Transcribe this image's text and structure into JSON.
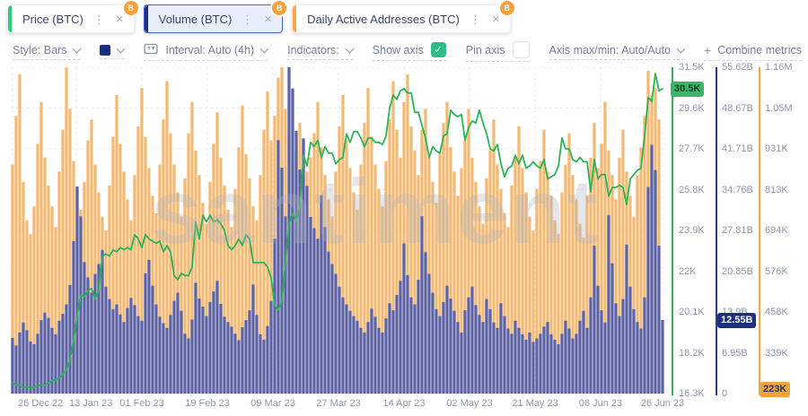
{
  "tabs": [
    {
      "label": "Price (BTC)",
      "accent": "#2ecc71",
      "selected": false
    },
    {
      "label": "Volume (BTC)",
      "accent": "#1d2d7e",
      "selected": true
    },
    {
      "label": "Daily Active Addresses (BTC)",
      "accent": "#ffa44d",
      "selected": false
    }
  ],
  "coin_badge": "B",
  "toolbar": {
    "style_label": "Style: Bars",
    "interval_label": "Interval: Auto (4h)",
    "indicators_label": "Indicators:",
    "show_axis_label": "Show axis",
    "show_axis_checked": "✓",
    "pin_axis_label": "Pin axis",
    "axis_maxmin_label": "Axis max/min: Auto/Auto",
    "combine_plus": "+",
    "combine_label": "Combine metrics"
  },
  "watermark": "santiment",
  "axes": {
    "price": {
      "color": "#2bb457",
      "badge": "30.5K",
      "badge_value": 30.5,
      "labels": [
        "31.5K",
        "29.6K",
        "27.7K",
        "25.8K",
        "23.9K",
        "22K",
        "20.1K",
        "18.2K",
        "16.3K"
      ]
    },
    "volume": {
      "color": "#2b3a8f",
      "badge": "12.55B",
      "badge_value": 12.55,
      "labels": [
        "55.62B",
        "48.67B",
        "41.71B",
        "34.76B",
        "27.81B",
        "20.85B",
        "13.9B",
        "6.95B",
        "0"
      ]
    },
    "daa": {
      "color": "#f7a93e",
      "badge": "223K",
      "badge_value": 223,
      "labels": [
        "1.16M",
        "1.05M",
        "931K",
        "813K",
        "694K",
        "576K",
        "458K",
        "339K",
        ""
      ]
    }
  },
  "x_labels": [
    "26 Dec 22",
    "13 Jan 23",
    "01 Feb 23",
    "19 Feb 23",
    "09 Mar 23",
    "27 Mar 23",
    "14 Apr 23",
    "02 May 23",
    "21 May 23",
    "08 Jun 23",
    "26 Jun 23"
  ],
  "chart_data": {
    "type": "mixed",
    "x_range": [
      "26 Dec 22",
      "26 Jun 23"
    ],
    "interval": "4h (rendered daily)",
    "grid": true,
    "axis_ranges": {
      "price_K_usd": [
        16.3,
        31.5
      ],
      "volume_B_usd": [
        0,
        55.62
      ],
      "daa_K_addresses": [
        221,
        1160
      ]
    },
    "series": [
      {
        "name": "Price (BTC)",
        "type": "line",
        "axis": "price",
        "unit": "K USD",
        "color": "#2bb457",
        "values": [
          16.8,
          16.7,
          16.7,
          16.6,
          16.6,
          16.55,
          16.6,
          16.65,
          16.7,
          16.7,
          16.8,
          16.9,
          16.95,
          17.0,
          17.2,
          17.4,
          17.9,
          18.8,
          19.9,
          20.9,
          20.8,
          21.1,
          21.2,
          20.7,
          21.1,
          22.7,
          22.8,
          22.7,
          23.0,
          22.9,
          23.1,
          23.0,
          23.1,
          23.0,
          23.7,
          23.5,
          23.1,
          23.7,
          23.5,
          23.4,
          23.3,
          23.4,
          22.9,
          23.2,
          22.9,
          21.8,
          21.6,
          21.9,
          21.8,
          21.8,
          22.2,
          24.3,
          23.5,
          24.6,
          24.3,
          24.6,
          24.3,
          24.4,
          24.2,
          23.9,
          23.2,
          23.0,
          23.2,
          23.5,
          23.2,
          23.7,
          23.5,
          22.4,
          22.4,
          22.4,
          22.4,
          22.2,
          21.7,
          20.4,
          20.2,
          20.6,
          22.4,
          24.2,
          24.7,
          24.3,
          25.0,
          27.4,
          26.9,
          28.0,
          27.8,
          28.1,
          27.3,
          27.8,
          27.5,
          27.5,
          27.0,
          27.2,
          27.3,
          28.4,
          28.0,
          28.5,
          28.5,
          28.2,
          27.8,
          28.2,
          28.2,
          28.0,
          28.0,
          27.9,
          28.3,
          29.6,
          30.2,
          30.0,
          30.4,
          30.5,
          30.3,
          30.3,
          29.4,
          29.4,
          28.8,
          28.2,
          27.3,
          27.8,
          27.6,
          27.5,
          28.3,
          28.4,
          29.5,
          29.3,
          29.2,
          29.3,
          28.1,
          28.7,
          29.0,
          28.9,
          29.5,
          28.9,
          28.4,
          27.7,
          27.6,
          27.9,
          27.0,
          26.4,
          26.8,
          26.9,
          27.4,
          27.0,
          27.4,
          26.8,
          26.9,
          27.1,
          26.9,
          26.8,
          27.2,
          26.3,
          26.4,
          26.5,
          26.9,
          28.2,
          27.7,
          27.7,
          27.2,
          27.1,
          27.3,
          27.1,
          27.1,
          25.7,
          27.2,
          26.3,
          26.5,
          26.5,
          25.5,
          25.9,
          25.9,
          26.0,
          25.9,
          25.1,
          26.3,
          26.5,
          26.7,
          26.8,
          28.3,
          30.1,
          29.9,
          31.2,
          30.4,
          30.5
        ]
      },
      {
        "name": "Volume (BTC)",
        "type": "bar",
        "axis": "volume",
        "unit": "B USD",
        "color": "#5a62a8",
        "values": [
          9.5,
          8.2,
          10.4,
          12.1,
          10.8,
          8.9,
          8.4,
          10.2,
          12.5,
          13.8,
          12.9,
          11.2,
          10.1,
          12.4,
          13.6,
          15.2,
          18.5,
          26.0,
          35.3,
          30.2,
          22.4,
          19.8,
          17.2,
          20.4,
          22.1,
          24.5,
          18.2,
          16.1,
          14.4,
          15.2,
          13.5,
          12.2,
          14.6,
          16.3,
          15.1,
          13.2,
          12.4,
          20.5,
          22.8,
          18.4,
          15.2,
          13.1,
          12.0,
          11.2,
          13.4,
          15.8,
          17.2,
          14.1,
          10.2,
          9.4,
          12.6,
          18.9,
          16.2,
          14.8,
          13.2,
          15.6,
          17.4,
          19.2,
          15.3,
          13.1,
          12.2,
          11.4,
          10.2,
          9.1,
          11.3,
          12.5,
          14.2,
          18.6,
          13.4,
          10.1,
          9.2,
          11.5,
          15.8,
          26.4,
          43.2,
          38.5,
          30.2,
          55.6,
          52.0,
          44.8,
          38.2,
          43.5,
          35.4,
          30.1,
          28.2,
          26.4,
          33.8,
          28.4,
          24.2,
          22.1,
          20.4,
          18.2,
          16.4,
          15.2,
          14.1,
          13.2,
          12.4,
          11.2,
          10.4,
          12.2,
          14.5,
          13.1,
          11.2,
          10.4,
          12.8,
          15.4,
          14.2,
          16.8,
          19.2,
          25.6,
          20.2,
          16.4,
          15.2,
          19.4,
          30.2,
          24.1,
          20.4,
          17.2,
          14.4,
          13.2,
          15.6,
          18.4,
          16.2,
          14.1,
          12.2,
          10.4,
          14.2,
          16.4,
          18.2,
          15.1,
          13.4,
          12.2,
          16.1,
          14.4,
          12.1,
          11.2,
          15.4,
          13.2,
          11.1,
          10.2,
          12.4,
          11.2,
          10.1,
          9.2,
          10.4,
          8.8,
          9.4,
          10.2,
          11.4,
          12.2,
          10.1,
          9.2,
          8.4,
          10.2,
          12.4,
          11.1,
          9.4,
          10.2,
          12.4,
          14.1,
          11.2,
          16.4,
          25.2,
          18.4,
          14.2,
          12.1,
          30.4,
          22.2,
          15.4,
          13.2,
          16.1,
          25.4,
          18.2,
          14.4,
          12.2,
          11.1,
          16.4,
          35.2,
          42.4,
          38.1,
          25.2,
          12.55
        ]
      },
      {
        "name": "Daily Active Addresses (BTC)",
        "type": "bar",
        "axis": "daa",
        "unit": "K addresses",
        "color": "#f4ba74",
        "values": [
          880,
          1020,
          1140,
          830,
          720,
          680,
          760,
          940,
          1060,
          900,
          820,
          760,
          700,
          860,
          980,
          1160,
          1040,
          890,
          810,
          750,
          830,
          950,
          1010,
          880,
          800,
          730,
          690,
          820,
          960,
          1080,
          940,
          860,
          780,
          720,
          850,
          990,
          1100,
          960,
          870,
          790,
          740,
          880,
          1010,
          1120,
          970,
          880,
          800,
          730,
          840,
          970,
          1060,
          920,
          850,
          770,
          710,
          830,
          940,
          1030,
          900,
          820,
          750,
          700,
          810,
          930,
          1050,
          910,
          840,
          760,
          720,
          850,
          980,
          1090,
          950,
          1020,
          1130,
          1160,
          1040,
          960,
          880,
          920,
          1000,
          940,
          860,
          900,
          970,
          1060,
          930,
          850,
          780,
          730,
          860,
          990,
          1080,
          950,
          870,
          800,
          750,
          880,
          1000,
          1100,
          960,
          880,
          810,
          760,
          890,
          1010,
          1120,
          980,
          900,
          1060,
          1140,
          990,
          920,
          850,
          980,
          1040,
          900,
          830,
          770,
          910,
          1000,
          1060,
          930,
          860,
          790,
          870,
          950,
          1040,
          900,
          830,
          760,
          710,
          840,
          920,
          1010,
          880,
          810,
          740,
          700,
          820,
          900,
          990,
          870,
          800,
          730,
          690,
          810,
          890,
          980,
          860,
          790,
          720,
          680,
          800,
          880,
          970,
          850,
          780,
          710,
          670,
          790,
          900,
          1000,
          870,
          940,
          1060,
          920,
          850,
          780,
          900,
          980,
          860,
          790,
          730,
          850,
          930,
          1020,
          1150,
          1080,
          1100,
          1010,
          223
        ]
      }
    ]
  },
  "layout_colors": {
    "grid": "#e9ebf3",
    "label": "#8f97ab"
  }
}
